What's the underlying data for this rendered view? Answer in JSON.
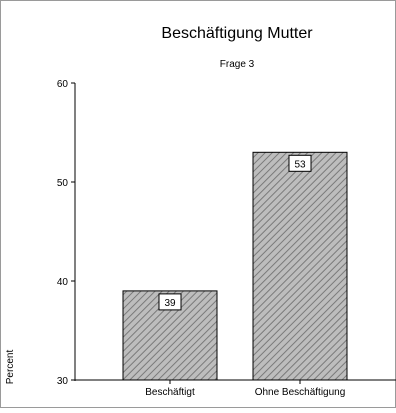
{
  "chart_data": {
    "type": "bar",
    "title": "Beschäftigung Mutter",
    "subtitle": "Frage 3",
    "xlabel": "",
    "ylabel": "Percent",
    "categories": [
      "Beschäftigt",
      "Ohne Beschäftigung"
    ],
    "values": [
      39,
      53
    ],
    "data_labels": [
      "39",
      "53"
    ],
    "ylim": [
      30,
      60
    ],
    "yticks": [
      30,
      40,
      50,
      60
    ],
    "ytick_labels": [
      "30",
      "40",
      "50",
      "60"
    ],
    "grid": false,
    "legend": "none",
    "bar_fill": "hatched",
    "colors": {
      "bar_fill": "#bdbdbd",
      "hatch": "#7a7a7a",
      "outline": "#000000",
      "frame": "#9a9a9a"
    }
  }
}
